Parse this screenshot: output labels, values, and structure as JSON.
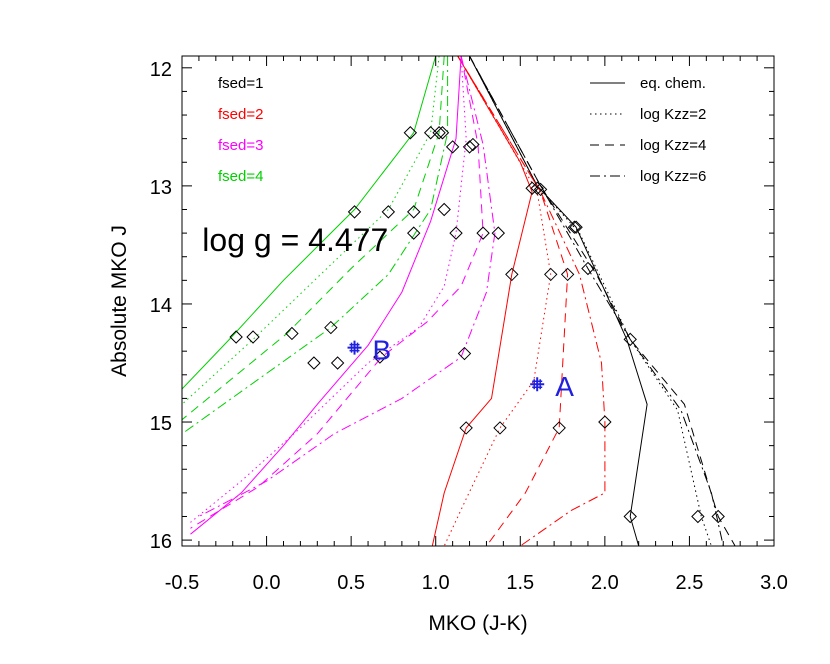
{
  "chart_data": {
    "type": "line",
    "xlabel": "MKO (J-K)",
    "ylabel": "Absolute MKO J",
    "xlim": [
      -0.5,
      3.0
    ],
    "ylim": [
      16.05,
      11.9
    ],
    "y_inverted": true,
    "x_ticks": [
      -0.5,
      0.0,
      0.5,
      1.0,
      1.5,
      2.0,
      2.5,
      3.0
    ],
    "x_tick_labels": [
      "-0.5",
      "0.0",
      "0.5",
      "1.0",
      "1.5",
      "2.0",
      "2.5",
      "3.0"
    ],
    "y_ticks": [
      12,
      13,
      14,
      15,
      16
    ],
    "y_tick_labels": [
      "12",
      "13",
      "14",
      "15",
      "16"
    ],
    "annotation": "log g = 4.477",
    "fsed_legend": [
      {
        "label": "fsed=1",
        "color": "#000000"
      },
      {
        "label": "fsed=2",
        "color": "#ff0000"
      },
      {
        "label": "fsed=3",
        "color": "#ff00ff"
      },
      {
        "label": "fsed=4",
        "color": "#00d000"
      }
    ],
    "chem_legend": [
      {
        "label": "eq. chem.",
        "dash": "none"
      },
      {
        "label": "log Kzz=2",
        "dash": "dotted"
      },
      {
        "label": "log Kzz=4",
        "dash": "dashed"
      },
      {
        "label": "log Kzz=6",
        "dash": "dashdot"
      }
    ],
    "series": [
      {
        "fsed": 1,
        "chem": "eq. chem.",
        "color": "#000000",
        "dash": "none",
        "points": [
          [
            1.2,
            11.9
          ],
          [
            1.6,
            13.0
          ],
          [
            1.83,
            13.35
          ],
          [
            2.13,
            14.3
          ],
          [
            2.25,
            14.85
          ],
          [
            2.15,
            15.8
          ],
          [
            2.2,
            16.05
          ]
        ]
      },
      {
        "fsed": 1,
        "chem": "log Kzz=2",
        "color": "#000000",
        "dash": "dotted",
        "points": [
          [
            1.2,
            11.9
          ],
          [
            1.6,
            13.0
          ],
          [
            1.85,
            13.4
          ],
          [
            2.15,
            14.3
          ],
          [
            2.43,
            14.9
          ],
          [
            2.57,
            15.8
          ],
          [
            2.63,
            16.05
          ]
        ]
      },
      {
        "fsed": 1,
        "chem": "log Kzz=4",
        "color": "#000000",
        "dash": "dashed",
        "points": [
          [
            1.2,
            11.9
          ],
          [
            1.62,
            13.0
          ],
          [
            1.95,
            13.75
          ],
          [
            2.15,
            14.3
          ],
          [
            2.47,
            14.85
          ],
          [
            2.67,
            15.8
          ],
          [
            2.77,
            16.05
          ]
        ]
      },
      {
        "fsed": 1,
        "chem": "log Kzz=6",
        "color": "#000000",
        "dash": "dashdot",
        "points": [
          [
            1.2,
            11.9
          ],
          [
            1.62,
            13.0
          ],
          [
            1.9,
            13.7
          ],
          [
            2.15,
            14.3
          ],
          [
            2.45,
            14.9
          ],
          [
            2.63,
            15.6
          ],
          [
            2.7,
            16.05
          ]
        ]
      },
      {
        "fsed": 2,
        "chem": "eq. chem.",
        "color": "#ff0000",
        "dash": "none",
        "points": [
          [
            1.13,
            11.9
          ],
          [
            1.5,
            12.8
          ],
          [
            1.57,
            13.05
          ],
          [
            1.45,
            13.75
          ],
          [
            1.33,
            14.8
          ],
          [
            1.18,
            15.05
          ],
          [
            1.05,
            15.6
          ],
          [
            0.98,
            16.05
          ]
        ]
      },
      {
        "fsed": 2,
        "chem": "log Kzz=2",
        "color": "#ff0000",
        "dash": "dotted",
        "points": [
          [
            1.13,
            11.9
          ],
          [
            1.6,
            13.05
          ],
          [
            1.68,
            13.75
          ],
          [
            1.58,
            14.65
          ],
          [
            1.38,
            15.05
          ],
          [
            1.18,
            15.65
          ],
          [
            1.05,
            16.05
          ]
        ]
      },
      {
        "fsed": 2,
        "chem": "log Kzz=4",
        "color": "#ff0000",
        "dash": "dashed",
        "points": [
          [
            1.13,
            11.9
          ],
          [
            1.62,
            13.05
          ],
          [
            1.78,
            13.75
          ],
          [
            1.73,
            15.05
          ],
          [
            1.53,
            15.6
          ],
          [
            1.3,
            16.05
          ]
        ]
      },
      {
        "fsed": 2,
        "chem": "log Kzz=6",
        "color": "#ff0000",
        "dash": "dashdot",
        "points": [
          [
            1.13,
            11.9
          ],
          [
            1.62,
            13.05
          ],
          [
            1.85,
            13.75
          ],
          [
            1.98,
            14.5
          ],
          [
            2.0,
            15.0
          ],
          [
            2.0,
            15.6
          ],
          [
            1.8,
            15.75
          ],
          [
            1.5,
            16.05
          ]
        ]
      },
      {
        "fsed": 3,
        "chem": "eq. chem.",
        "color": "#ff00ff",
        "dash": "none",
        "points": [
          [
            1.15,
            11.9
          ],
          [
            1.12,
            12.6
          ],
          [
            0.97,
            13.3
          ],
          [
            0.8,
            13.9
          ],
          [
            0.6,
            14.35
          ],
          [
            0.3,
            14.85
          ],
          [
            0.1,
            15.2
          ],
          [
            -0.15,
            15.6
          ],
          [
            -0.45,
            15.95
          ]
        ]
      },
      {
        "fsed": 3,
        "chem": "log Kzz=2",
        "color": "#ff00ff",
        "dash": "dotted",
        "points": [
          [
            1.15,
            11.9
          ],
          [
            1.18,
            12.6
          ],
          [
            1.12,
            13.4
          ],
          [
            1.05,
            13.85
          ],
          [
            0.9,
            14.2
          ],
          [
            0.6,
            14.5
          ],
          [
            0.2,
            15.05
          ],
          [
            -0.15,
            15.5
          ],
          [
            -0.45,
            15.85
          ]
        ]
      },
      {
        "fsed": 3,
        "chem": "log Kzz=4",
        "color": "#ff00ff",
        "dash": "dashed",
        "points": [
          [
            1.15,
            11.9
          ],
          [
            1.25,
            12.65
          ],
          [
            1.28,
            13.4
          ],
          [
            1.15,
            13.85
          ],
          [
            0.95,
            14.15
          ],
          [
            0.68,
            14.45
          ],
          [
            0.3,
            15.1
          ],
          [
            -0.05,
            15.55
          ],
          [
            -0.45,
            15.9
          ]
        ]
      },
      {
        "fsed": 3,
        "chem": "log Kzz=6",
        "color": "#ff00ff",
        "dash": "dashdot",
        "points": [
          [
            1.15,
            11.9
          ],
          [
            1.28,
            12.65
          ],
          [
            1.35,
            13.4
          ],
          [
            1.3,
            13.9
          ],
          [
            1.15,
            14.45
          ],
          [
            0.8,
            14.8
          ],
          [
            0.4,
            15.1
          ],
          [
            0.0,
            15.5
          ],
          [
            -0.4,
            15.8
          ]
        ]
      },
      {
        "fsed": 4,
        "chem": "eq. chem.",
        "color": "#00d000",
        "dash": "none",
        "points": [
          [
            1.0,
            11.9
          ],
          [
            0.87,
            12.55
          ],
          [
            0.52,
            13.2
          ],
          [
            0.1,
            13.8
          ],
          [
            -0.22,
            14.3
          ],
          [
            -0.5,
            14.72
          ]
        ]
      },
      {
        "fsed": 4,
        "chem": "log Kzz=2",
        "color": "#00d000",
        "dash": "dotted",
        "points": [
          [
            1.02,
            11.9
          ],
          [
            0.97,
            12.55
          ],
          [
            0.72,
            13.2
          ],
          [
            0.32,
            13.75
          ],
          [
            -0.08,
            14.3
          ],
          [
            -0.5,
            14.85
          ]
        ]
      },
      {
        "fsed": 4,
        "chem": "log Kzz=4",
        "color": "#00d000",
        "dash": "dashed",
        "points": [
          [
            1.05,
            11.9
          ],
          [
            1.02,
            12.55
          ],
          [
            0.87,
            13.2
          ],
          [
            0.5,
            13.7
          ],
          [
            0.12,
            14.25
          ],
          [
            -0.5,
            14.98
          ]
        ]
      },
      {
        "fsed": 4,
        "chem": "log Kzz=6",
        "color": "#00d000",
        "dash": "dashdot",
        "points": [
          [
            1.07,
            11.9
          ],
          [
            1.07,
            12.55
          ],
          [
            0.97,
            13.2
          ],
          [
            0.72,
            13.75
          ],
          [
            0.38,
            14.2
          ],
          [
            -0.5,
            15.1
          ]
        ]
      }
    ],
    "diamond_markers": [
      [
        0.85,
        12.55
      ],
      [
        0.97,
        12.55
      ],
      [
        1.02,
        12.55
      ],
      [
        1.04,
        12.55
      ],
      [
        1.1,
        12.67
      ],
      [
        1.2,
        12.67
      ],
      [
        1.22,
        12.65
      ],
      [
        1.57,
        13.02
      ],
      [
        1.6,
        13.02
      ],
      [
        1.62,
        13.03
      ],
      [
        0.52,
        13.22
      ],
      [
        0.72,
        13.22
      ],
      [
        0.87,
        13.22
      ],
      [
        1.05,
        13.2
      ],
      [
        1.82,
        13.35
      ],
      [
        1.83,
        13.35
      ],
      [
        0.87,
        13.4
      ],
      [
        1.12,
        13.4
      ],
      [
        1.28,
        13.4
      ],
      [
        1.37,
        13.4
      ],
      [
        1.9,
        13.7
      ],
      [
        1.45,
        13.75
      ],
      [
        1.68,
        13.75
      ],
      [
        1.78,
        13.75
      ],
      [
        0.38,
        14.2
      ],
      [
        0.15,
        14.25
      ],
      [
        -0.08,
        14.28
      ],
      [
        -0.18,
        14.28
      ],
      [
        2.15,
        14.3
      ],
      [
        0.28,
        14.5
      ],
      [
        0.42,
        14.5
      ],
      [
        0.67,
        14.45
      ],
      [
        1.17,
        14.42
      ],
      [
        1.18,
        15.05
      ],
      [
        1.38,
        15.05
      ],
      [
        1.73,
        15.05
      ],
      [
        2.0,
        15.0
      ],
      [
        2.15,
        15.8
      ],
      [
        2.55,
        15.8
      ],
      [
        2.67,
        15.8
      ]
    ],
    "stars": [
      {
        "label": "B",
        "x": 0.52,
        "y": 14.37
      },
      {
        "label": "A",
        "x": 1.6,
        "y": 14.68
      }
    ],
    "star_color": "#2020e0"
  }
}
